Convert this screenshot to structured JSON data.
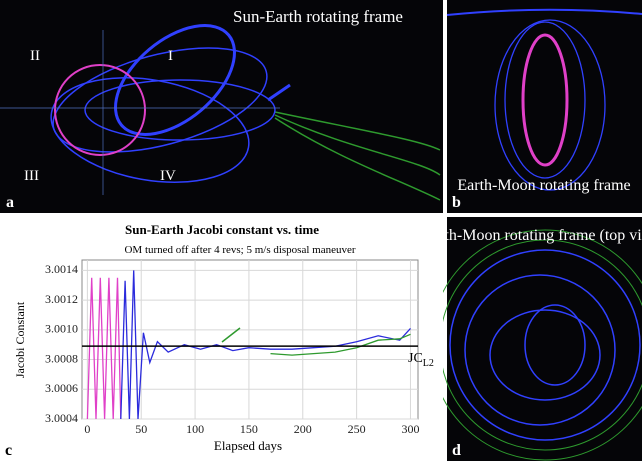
{
  "panel_a": {
    "title": "Sun-Earth rotating frame",
    "regions": [
      "I",
      "II",
      "III",
      "IV"
    ],
    "label": "a"
  },
  "panel_b": {
    "title": "Earth-Moon rotating frame",
    "label": "b"
  },
  "panel_d": {
    "title": "Earth-Moon rotating frame (top view)",
    "label": "d"
  },
  "panel_c": {
    "label": "c"
  },
  "chart_data": {
    "type": "line",
    "title": "Sun-Earth Jacobi constant vs. time",
    "subtitle": "OM turned off after 4 revs; 5 m/s disposal maneuver",
    "xlabel": "Elapsed days",
    "ylabel": "Jacobi Constant",
    "xlim": [
      -5,
      307
    ],
    "xticks": [
      0,
      50,
      100,
      150,
      200,
      250,
      300
    ],
    "ylim": [
      3.0004,
      3.00147
    ],
    "yticks": [
      3.0004,
      3.0006,
      3.0008,
      {
        "value": 3.001,
        "label": "3.0010"
      },
      3.0012,
      3.0014
    ],
    "grid": true,
    "reference_line": 3.00089,
    "reference_label": "JC",
    "reference_label_sub": "L2",
    "series": [
      {
        "color": "#e040c8",
        "x": [
          0,
          4,
          8,
          12,
          16,
          20,
          24,
          28,
          31
        ],
        "values": [
          3.0004,
          3.00135,
          3.0004,
          3.00135,
          3.0004,
          3.00135,
          3.0004,
          3.00135,
          3.0004
        ]
      },
      {
        "color": "#2b2bdc",
        "x": [
          31,
          35,
          39,
          43,
          47,
          52,
          58,
          65,
          75,
          90,
          105,
          120,
          135,
          150,
          170,
          190,
          210,
          230,
          250,
          270,
          290,
          300
        ],
        "values": [
          3.0004,
          3.00133,
          3.0004,
          3.0014,
          3.0004,
          3.00098,
          3.00078,
          3.00092,
          3.00085,
          3.0009,
          3.00087,
          3.0009,
          3.00086,
          3.00088,
          3.00087,
          3.00087,
          3.00088,
          3.00089,
          3.00092,
          3.00096,
          3.00093,
          3.00101
        ]
      },
      {
        "color": "#2e9a2e",
        "x": [
          170,
          190,
          210,
          230,
          250,
          270,
          290,
          300
        ],
        "values": [
          3.00084,
          3.00083,
          3.00084,
          3.00085,
          3.00088,
          3.00093,
          3.00094,
          3.00097
        ]
      }
    ]
  }
}
